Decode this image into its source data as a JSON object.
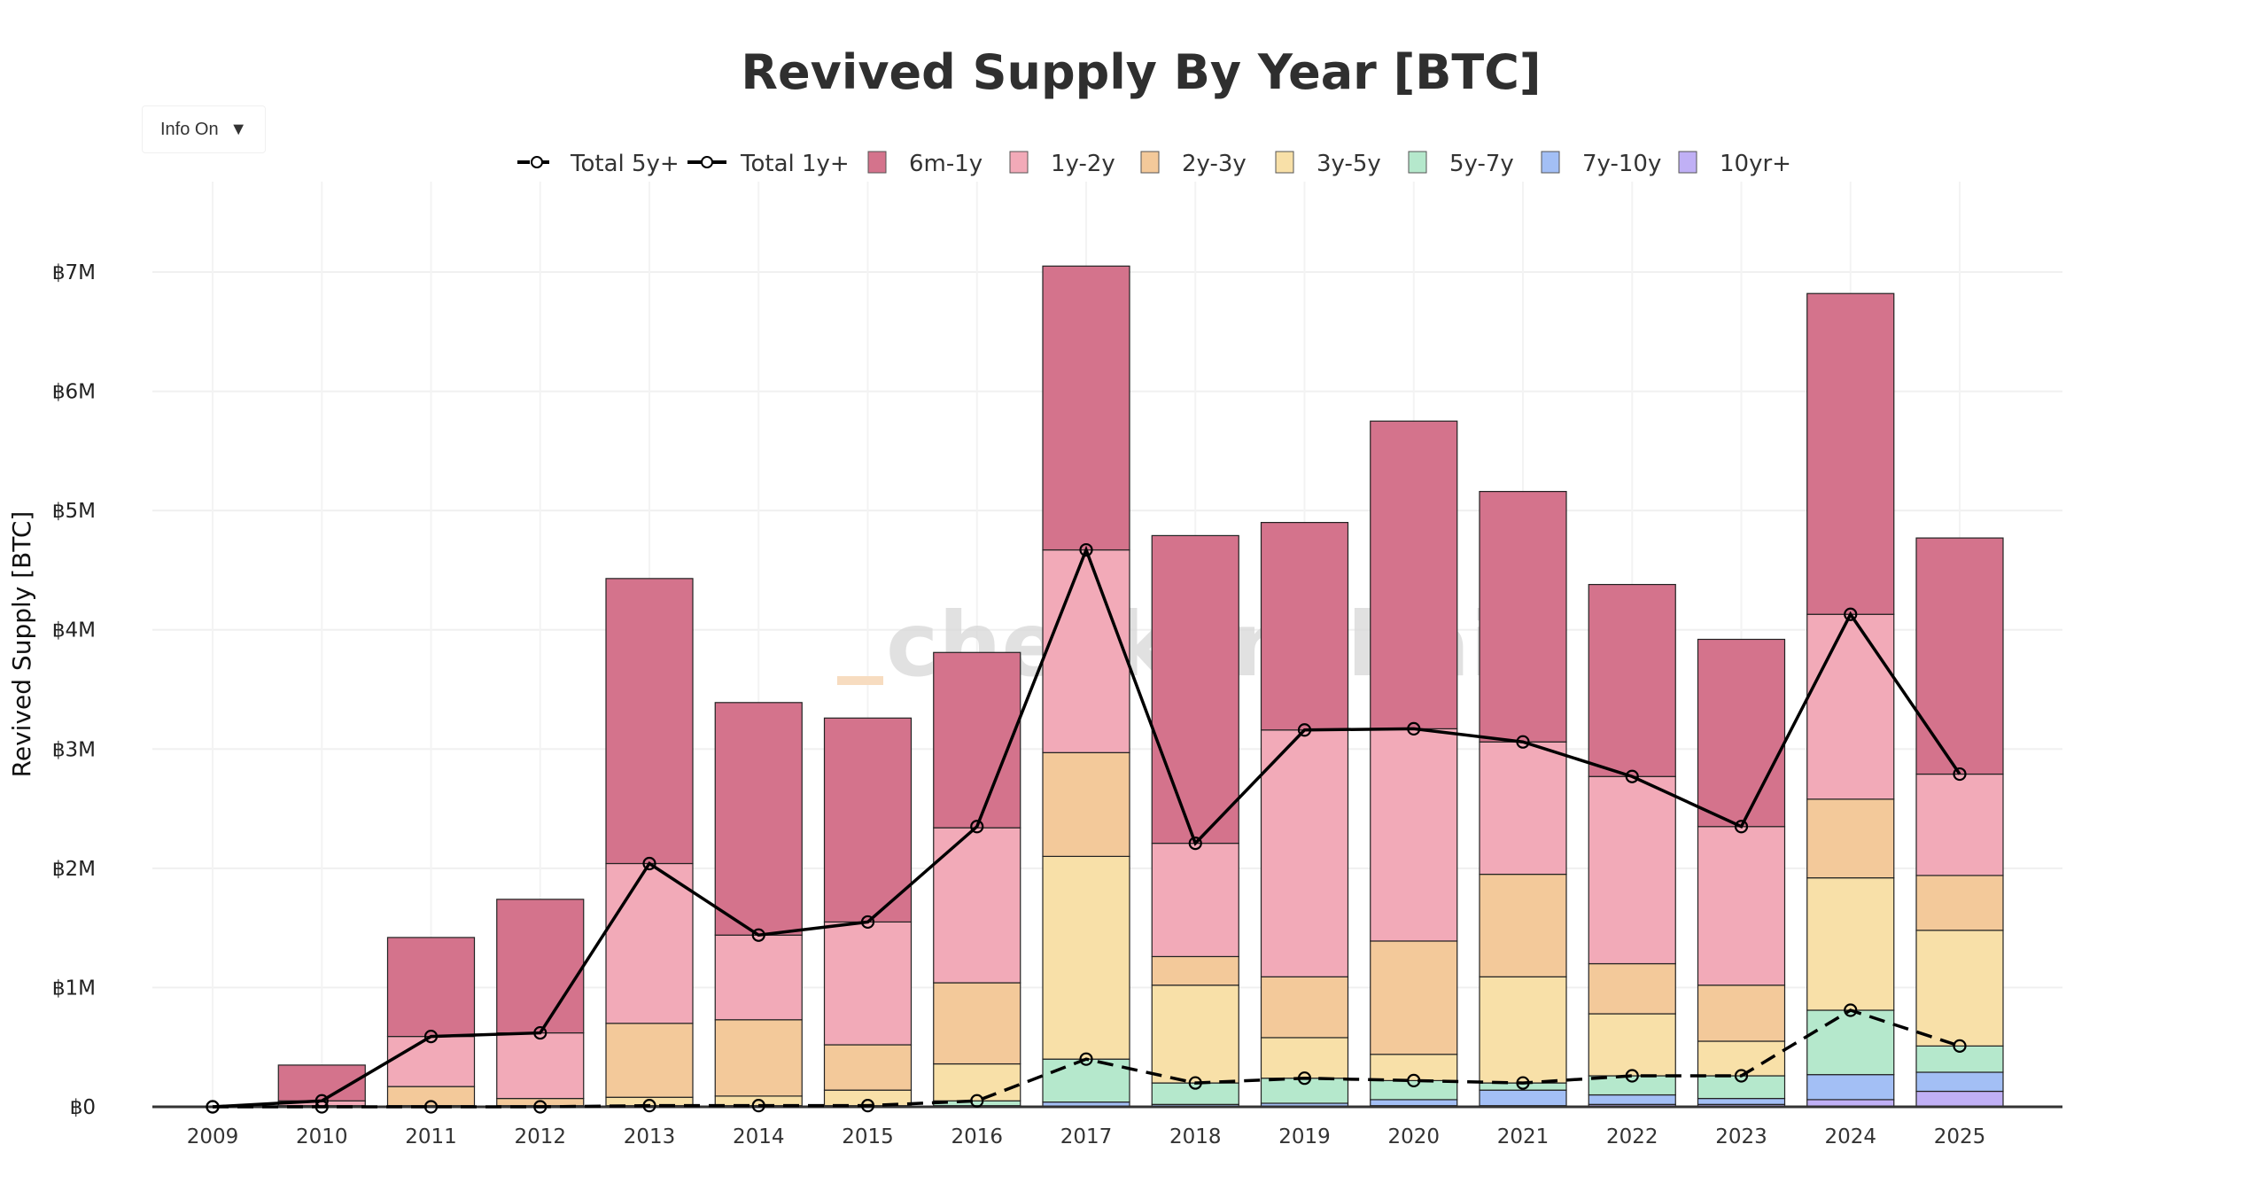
{
  "controls": {
    "info_label": "Info On",
    "info_icon": "caret-down-icon"
  },
  "watermark": "checkonchain",
  "chart_data": {
    "type": "bar",
    "stacked": true,
    "title": "Revived Supply By Year [BTC]",
    "xlabel": "",
    "ylabel": "Revived Supply [BTC]",
    "ylim": [
      0,
      7000000
    ],
    "yticks": [
      0,
      1000000,
      2000000,
      3000000,
      4000000,
      5000000,
      6000000,
      7000000
    ],
    "ytick_labels": [
      "฿0",
      "฿1M",
      "฿2M",
      "฿3M",
      "฿4M",
      "฿5M",
      "฿6M",
      "฿7M"
    ],
    "grid": true,
    "legend_placement": "top-center",
    "categories": [
      "2009",
      "2010",
      "2011",
      "2012",
      "2013",
      "2014",
      "2015",
      "2016",
      "2017",
      "2018",
      "2019",
      "2020",
      "2021",
      "2022",
      "2023",
      "2024",
      "2025"
    ],
    "series": [
      {
        "name": "10yr+",
        "color": "#c0b0f5",
        "values": [
          0,
          0,
          0,
          0,
          0,
          0,
          0,
          0,
          0,
          0,
          0,
          10000,
          10000,
          20000,
          20000,
          60000,
          130000
        ]
      },
      {
        "name": "7y-10y",
        "color": "#a3bff5",
        "values": [
          0,
          0,
          0,
          0,
          0,
          0,
          0,
          10000,
          40000,
          20000,
          30000,
          50000,
          130000,
          80000,
          50000,
          210000,
          160000
        ]
      },
      {
        "name": "5y-7y",
        "color": "#b5e8cc",
        "values": [
          0,
          0,
          0,
          0,
          10000,
          10000,
          10000,
          40000,
          360000,
          180000,
          210000,
          160000,
          60000,
          160000,
          190000,
          540000,
          220000
        ]
      },
      {
        "name": "3y-5y",
        "color": "#f8e0a8",
        "values": [
          0,
          0,
          10000,
          10000,
          70000,
          80000,
          130000,
          310000,
          1700000,
          820000,
          340000,
          220000,
          890000,
          520000,
          290000,
          1110000,
          970000
        ]
      },
      {
        "name": "2y-3y",
        "color": "#f3c99a",
        "values": [
          0,
          10000,
          160000,
          60000,
          620000,
          640000,
          380000,
          680000,
          870000,
          240000,
          510000,
          950000,
          860000,
          420000,
          470000,
          660000,
          460000
        ]
      },
      {
        "name": "1y-2y",
        "color": "#f2aab8",
        "values": [
          0,
          40000,
          420000,
          550000,
          1340000,
          710000,
          1030000,
          1300000,
          1700000,
          950000,
          2070000,
          1780000,
          1110000,
          1570000,
          1330000,
          1550000,
          850000
        ]
      },
      {
        "name": "6m-1y",
        "color": "#d4738c",
        "values": [
          0,
          300000,
          830000,
          1120000,
          2390000,
          1950000,
          1710000,
          1470000,
          2380000,
          2580000,
          1740000,
          2580000,
          2100000,
          1610000,
          1570000,
          2690000,
          1980000
        ]
      }
    ],
    "lines": [
      {
        "name": "Total 5y+",
        "style": "dashed",
        "color": "#000000",
        "values": [
          0,
          0,
          0,
          0,
          10000,
          10000,
          10000,
          50000,
          400000,
          200000,
          240000,
          220000,
          200000,
          260000,
          260000,
          810000,
          510000
        ]
      },
      {
        "name": "Total 1y+",
        "style": "solid",
        "color": "#000000",
        "values": [
          0,
          50000,
          590000,
          620000,
          2040000,
          1440000,
          1550000,
          2350000,
          4670000,
          2210000,
          3160000,
          3170000,
          3060000,
          2770000,
          2350000,
          4130000,
          2790000
        ]
      }
    ],
    "legend_order": [
      "Total 5y+",
      "Total 1y+",
      "6m-1y",
      "1y-2y",
      "2y-3y",
      "3y-5y",
      "5y-7y",
      "7y-10y",
      "10yr+"
    ]
  }
}
